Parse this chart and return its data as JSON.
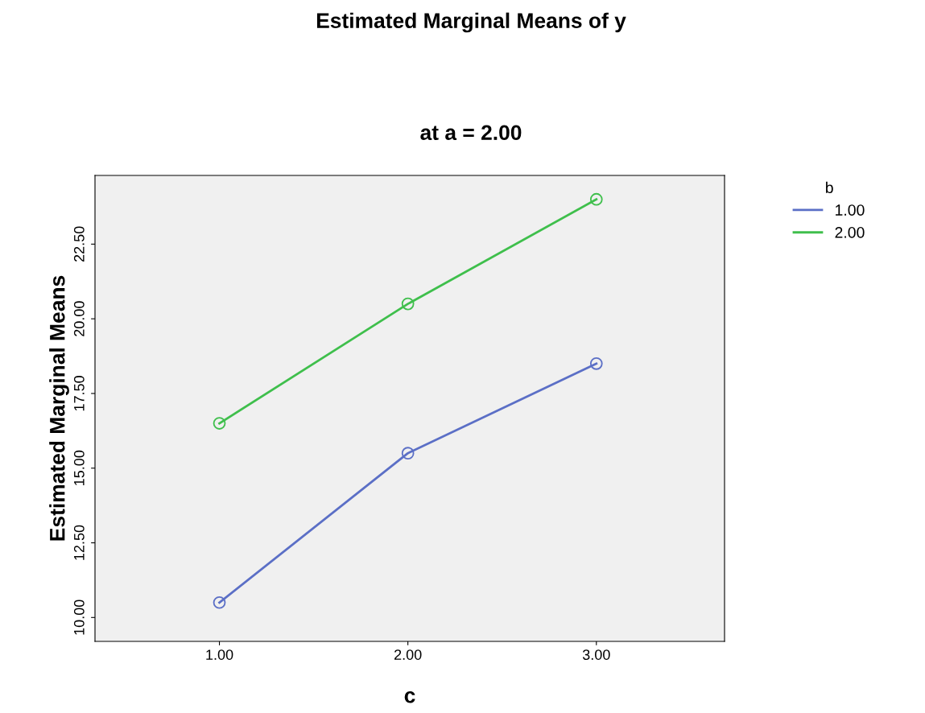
{
  "chart_data": {
    "type": "line",
    "title": "Estimated Marginal Means of y",
    "subtitle": "at a = 2.00",
    "xlabel": "c",
    "ylabel": "Estimated Marginal Means",
    "legend_title": "b",
    "x": [
      1,
      2,
      3
    ],
    "series": [
      {
        "name": "1.00",
        "color": "#5b6fc6",
        "values": [
          10.5,
          15.5,
          18.5
        ]
      },
      {
        "name": "2.00",
        "color": "#3fbf4c",
        "values": [
          16.5,
          20.5,
          24.0
        ]
      }
    ],
    "xlim": [
      0.34,
      3.68
    ],
    "xticks": [
      {
        "value": 1,
        "label": "1.00"
      },
      {
        "value": 2,
        "label": "2.00"
      },
      {
        "value": 3,
        "label": "3.00"
      }
    ],
    "ylim": [
      9.2,
      24.8
    ],
    "yticks": [
      {
        "value": 10,
        "label": "10.00"
      },
      {
        "value": 12.5,
        "label": "12.50"
      },
      {
        "value": 15,
        "label": "15.00"
      },
      {
        "value": 17.5,
        "label": "17.50"
      },
      {
        "value": 20,
        "label": "20.00"
      },
      {
        "value": 22.5,
        "label": "22.50"
      }
    ],
    "grid": false,
    "legend": "top right",
    "marker": "circle",
    "line_style": "solid"
  }
}
